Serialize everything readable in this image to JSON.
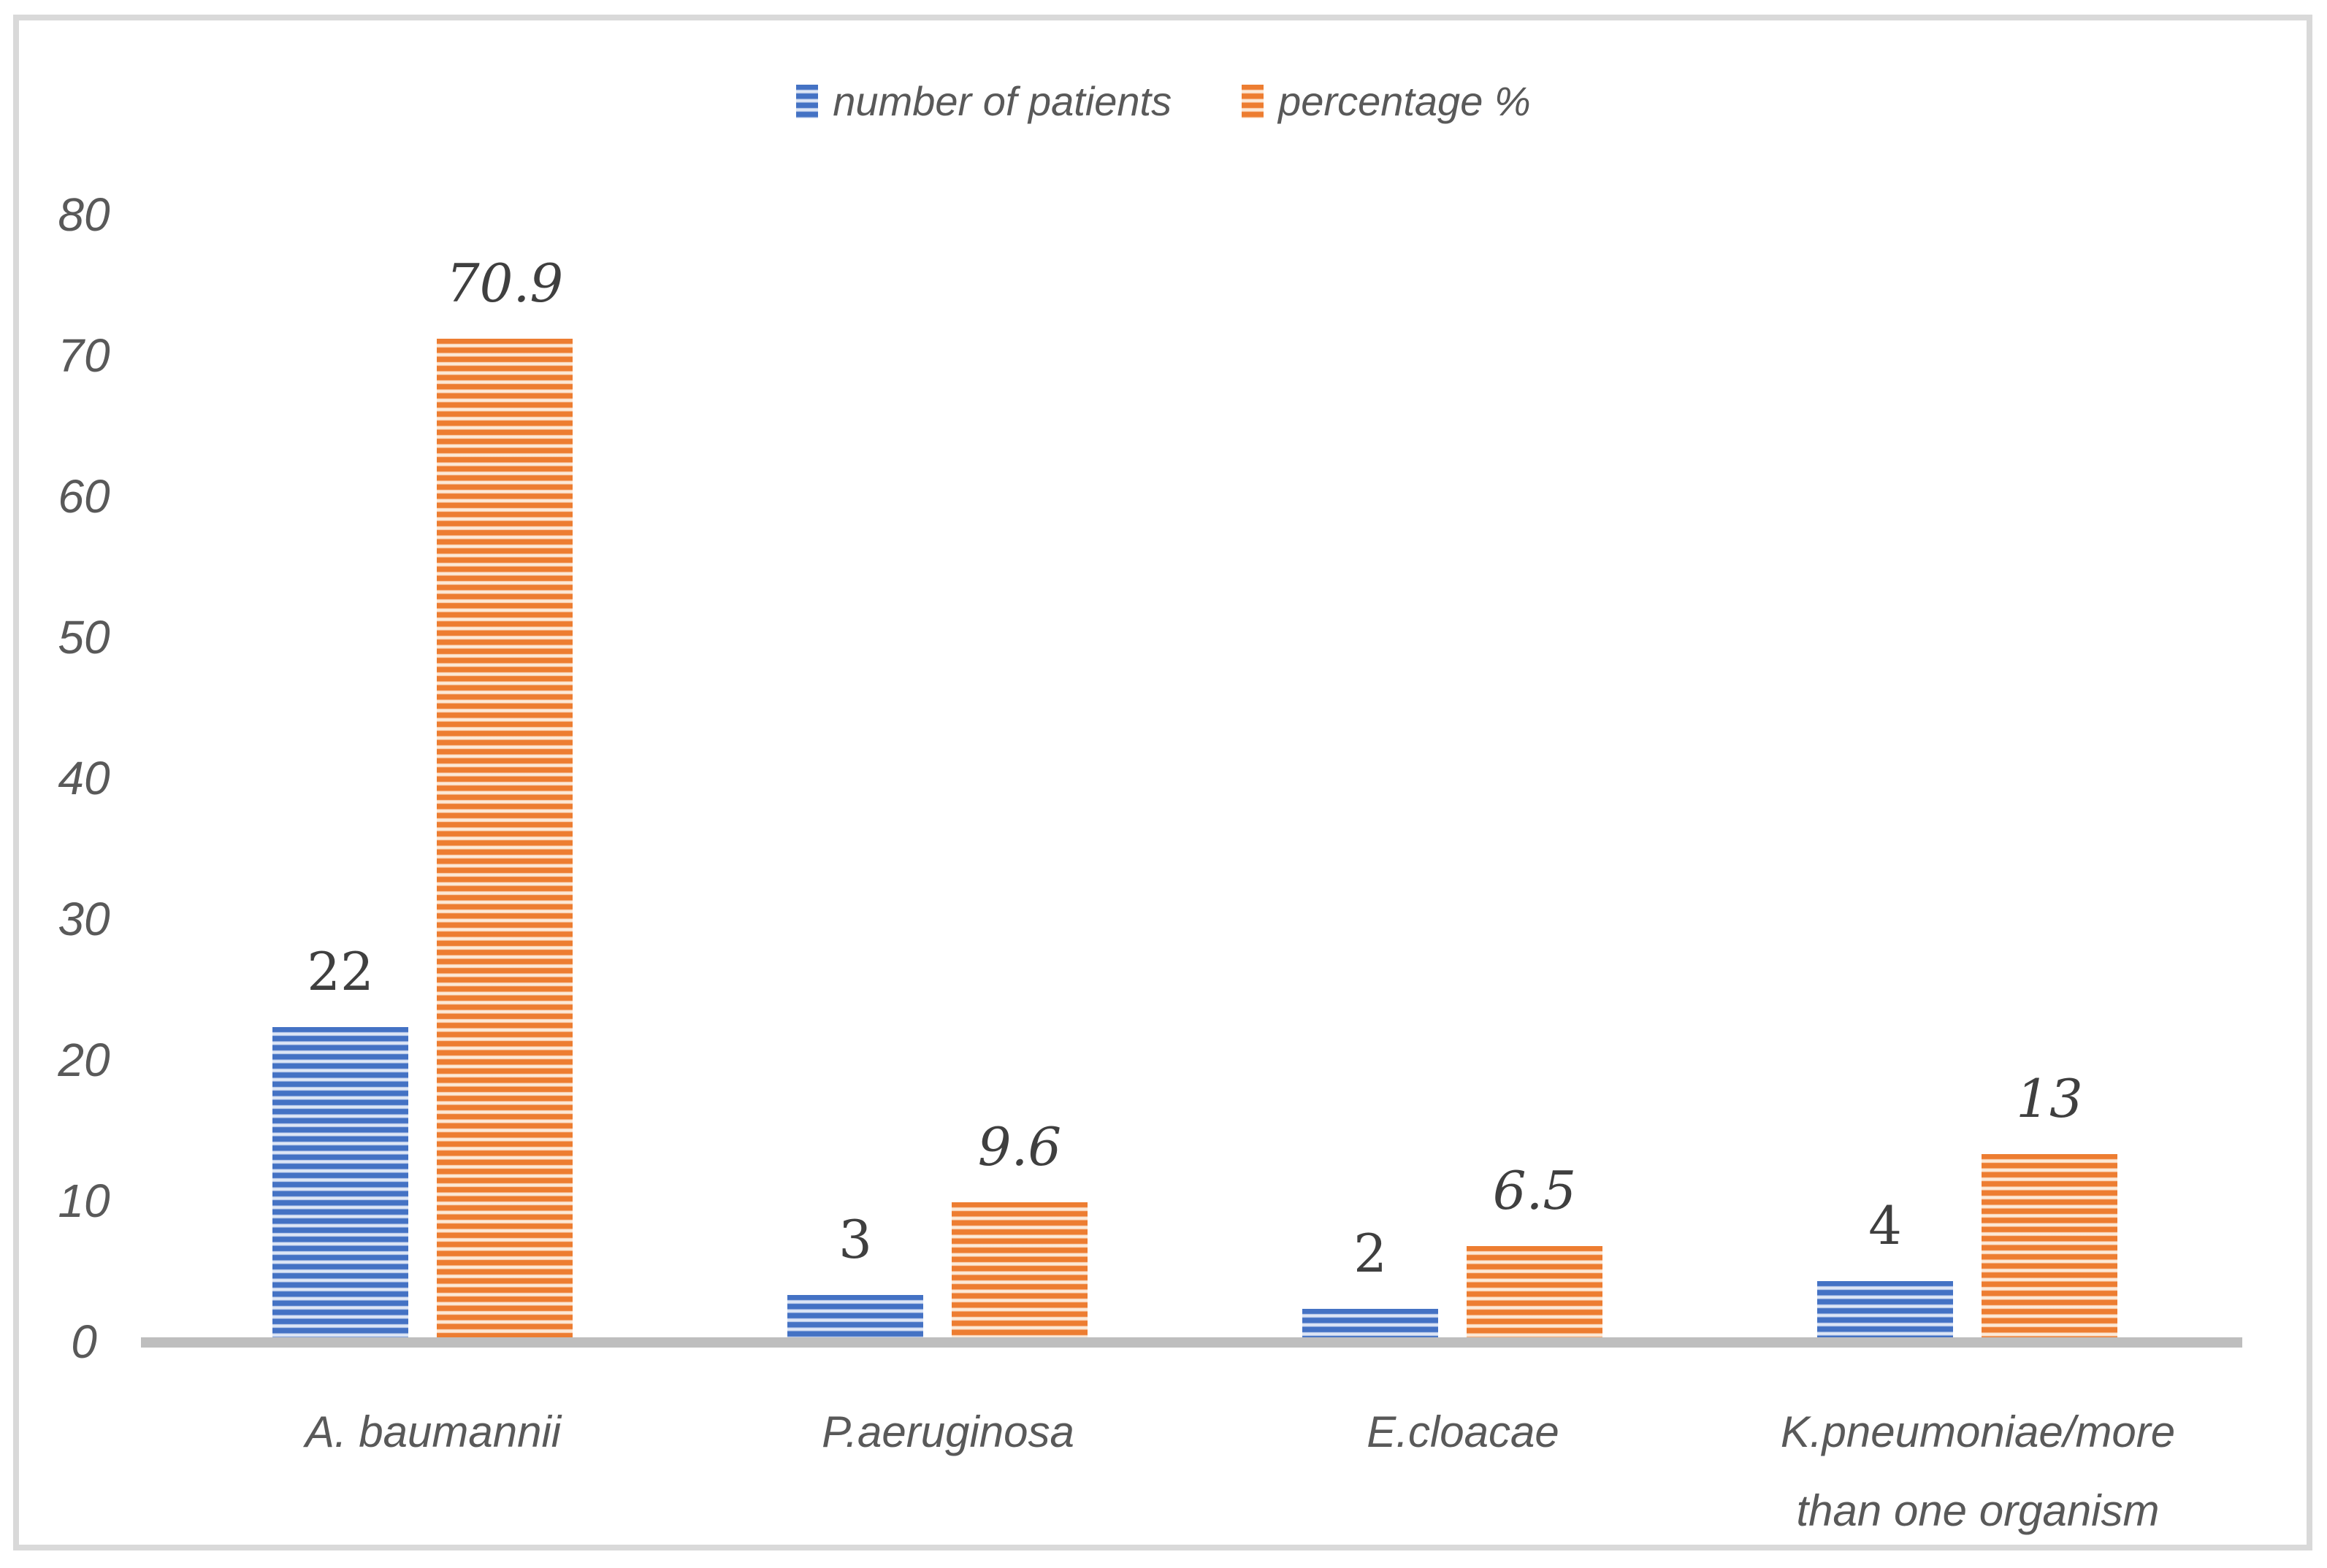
{
  "chart_data": {
    "type": "bar",
    "title": "",
    "categories": [
      "A. baumannii",
      "P.aeruginosa",
      "E.cloacae",
      "K.pneumoniae/more\nthan one organism"
    ],
    "series": [
      {
        "name": "number of patients",
        "key": "number-of-patients",
        "values": [
          22,
          3,
          2,
          4
        ],
        "color": "#4472C4",
        "stripe_edge": "#c8d5ef",
        "stripe_mid": "#e6edf8",
        "label_style": "upright"
      },
      {
        "name": "percentage %",
        "key": "percentage",
        "values": [
          70.9,
          9.6,
          6.5,
          13
        ],
        "color": "#ED7D31",
        "stripe_edge": "#fbddc5",
        "stripe_mid": "#fdeede",
        "label_style": "italic"
      }
    ],
    "y_axis": {
      "min": 0,
      "max": 80,
      "ticks": [
        80,
        70,
        60,
        50,
        40,
        30,
        20,
        10,
        0
      ]
    },
    "legend_position": "top",
    "gridlines": false,
    "bar_pattern": "horizontal-stripes",
    "colors": {
      "axis_line": "#BEBEBE",
      "frame_border": "#D9D9D9",
      "axis_text": "#595959",
      "data_label_text": "#3F3F3F",
      "background": "#ffffff"
    }
  }
}
